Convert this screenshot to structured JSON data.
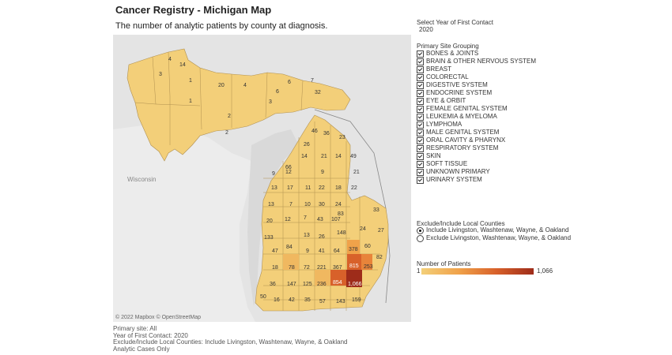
{
  "title": "Cancer Registry - Michigan Map",
  "subtitle": "The number of analytic patients by county at diagnosis.",
  "map": {
    "region_label": "Wisconsin",
    "attribution": "© 2022 Mapbox © OpenStreetMap",
    "county_values": [
      "4",
      "14",
      "3",
      "1",
      "20",
      "4",
      "6",
      "7",
      "6",
      "32",
      "1",
      "3",
      "2",
      "2",
      "46",
      "36",
      "23",
      "26",
      "66",
      "14",
      "21",
      "14",
      "49",
      "9",
      "12",
      "9",
      "21",
      "13",
      "17",
      "11",
      "22",
      "18",
      "22",
      "13",
      "7",
      "10",
      "30",
      "24",
      "20",
      "12",
      "7",
      "43",
      "107",
      "83",
      "133",
      "13",
      "26",
      "148",
      "33",
      "24",
      "27",
      "47",
      "84",
      "378",
      "60",
      "9",
      "41",
      "64",
      "18",
      "78",
      "72",
      "221",
      "367",
      "815",
      "253",
      "82",
      "36",
      "147",
      "125",
      "236",
      "854",
      "1,066",
      "50",
      "16",
      "42",
      "35",
      "57",
      "143",
      "159"
    ]
  },
  "year_filter": {
    "label": "Select Year of First Contact",
    "value": "2020"
  },
  "primary_site": {
    "title": "Primary Site Grouping",
    "items": [
      "BONES & JOINTS",
      "BRAIN & OTHER NERVOUS SYSTEM",
      "BREAST",
      "COLORECTAL",
      "DIGESTIVE SYSTEM",
      "ENDOCRINE SYSTEM",
      "EYE & ORBIT",
      "FEMALE GENITAL SYSTEM",
      "LEUKEMIA & MYELOMA",
      "LYMPHOMA",
      "MALE GENITAL SYSTEM",
      "ORAL CAVITY & PHARYNX",
      "RESPIRATORY SYSTEM",
      "SKIN",
      "SOFT TISSUE",
      "UNKNOWN PRIMARY",
      "URINARY SYSTEM"
    ]
  },
  "exclude": {
    "title": "Exclude/Include Local Counties",
    "options": [
      "Include Livingston, Washtenaw, Wayne, & Oakland",
      "Exclude Livingston, Washtenaw, Wayne, & Oakland"
    ],
    "selected": 0
  },
  "legend": {
    "title": "Number of Patients",
    "min": "1",
    "max": "1,066",
    "colors": [
      "#f3cf79",
      "#f0a24a",
      "#d8612a",
      "#9e2c1a"
    ]
  },
  "footer": [
    "Primary site: All",
    "Year of First Contact: 2020",
    "Exclude/Include Local Counties: Include Livingston, Washtenaw, Wayne, & Oakland",
    "Analytic Cases Only"
  ]
}
